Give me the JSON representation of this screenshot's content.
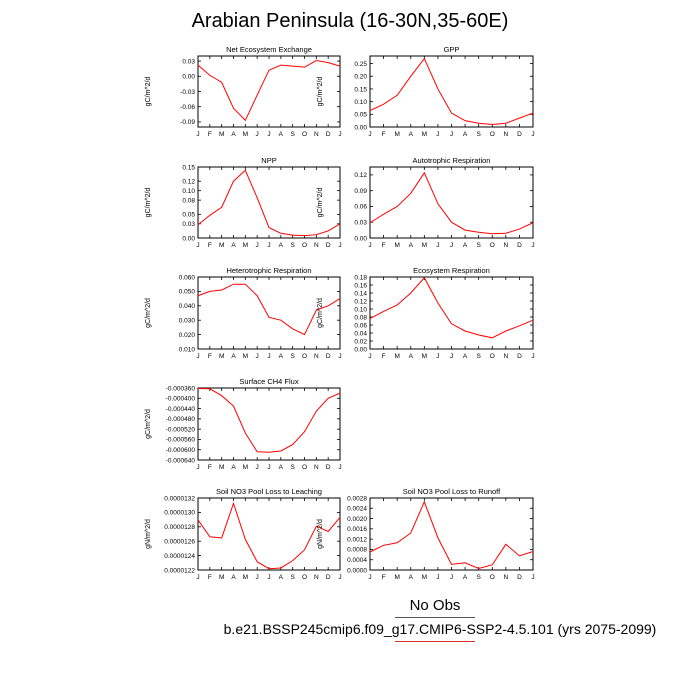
{
  "page": {
    "title": "Arabian Peninsula (16-30N,35-60E)",
    "legend_label": "No Obs",
    "case_name": "b.e21.BSSP245cmip6.f09_g17.CMIP6-SSP2-4.5.101 (yrs 2075-2099)",
    "line_color": "#ff0000"
  },
  "chart_data": [
    {
      "type": "line",
      "title": "Net Ecosystem Exchange",
      "ylabel": "gC/m^2/d",
      "x": [
        "J",
        "F",
        "M",
        "A",
        "M",
        "J",
        "J",
        "A",
        "S",
        "O",
        "N",
        "D",
        "J"
      ],
      "y_ticks": [
        "0.03",
        "0.00",
        "-0.03",
        "-0.06",
        "-0.09"
      ],
      "ylim": [
        -0.1,
        0.04
      ],
      "series": [
        {
          "values": [
            0.022,
            0.002,
            -0.012,
            -0.063,
            -0.087,
            -0.037,
            0.012,
            0.022,
            0.02,
            0.018,
            0.031,
            0.027,
            0.02
          ]
        }
      ]
    },
    {
      "type": "line",
      "title": "GPP",
      "ylabel": "gC/m^2/d",
      "x": [
        "J",
        "F",
        "M",
        "A",
        "M",
        "J",
        "J",
        "A",
        "S",
        "O",
        "N",
        "D",
        "J"
      ],
      "y_ticks": [
        "0.25",
        "0.20",
        "0.15",
        "0.10",
        "0.05",
        "0.00"
      ],
      "ylim": [
        0,
        0.28
      ],
      "series": [
        {
          "values": [
            0.065,
            0.09,
            0.125,
            0.2,
            0.27,
            0.15,
            0.055,
            0.025,
            0.015,
            0.01,
            0.015,
            0.035,
            0.055
          ]
        }
      ]
    },
    {
      "type": "line",
      "title": "NPP",
      "ylabel": "gC/m^2/d",
      "x": [
        "J",
        "F",
        "M",
        "A",
        "M",
        "J",
        "J",
        "A",
        "S",
        "O",
        "N",
        "D",
        "J"
      ],
      "y_ticks": [
        "0.15",
        "0.12",
        "0.10",
        "0.08",
        "0.05",
        "0.03",
        "0.00"
      ],
      "ylim": [
        0,
        0.15
      ],
      "series": [
        {
          "values": [
            0.028,
            0.048,
            0.065,
            0.12,
            0.143,
            0.085,
            0.022,
            0.01,
            0.006,
            0.005,
            0.007,
            0.015,
            0.03
          ]
        }
      ]
    },
    {
      "type": "line",
      "title": "Autotrophic Respiration",
      "ylabel": "gC/m^2/d",
      "x": [
        "J",
        "F",
        "M",
        "A",
        "M",
        "J",
        "J",
        "A",
        "S",
        "O",
        "N",
        "D",
        "J"
      ],
      "y_ticks": [
        "0.12",
        "0.09",
        "0.06",
        "0.03",
        "0.00"
      ],
      "ylim": [
        0,
        0.135
      ],
      "series": [
        {
          "values": [
            0.029,
            0.045,
            0.06,
            0.085,
            0.124,
            0.065,
            0.03,
            0.015,
            0.011,
            0.008,
            0.009,
            0.017,
            0.029
          ]
        }
      ]
    },
    {
      "type": "line",
      "title": "Heterotrophic Respiration",
      "ylabel": "gC/m^2/d",
      "x": [
        "J",
        "F",
        "M",
        "A",
        "M",
        "J",
        "J",
        "A",
        "S",
        "O",
        "N",
        "D",
        "J"
      ],
      "y_ticks": [
        "0.060",
        "0.050",
        "0.040",
        "0.030",
        "0.020",
        "0.010"
      ],
      "ylim": [
        0.01,
        0.06
      ],
      "series": [
        {
          "values": [
            0.047,
            0.05,
            0.051,
            0.055,
            0.055,
            0.047,
            0.032,
            0.03,
            0.024,
            0.02,
            0.037,
            0.04,
            0.045
          ]
        }
      ]
    },
    {
      "type": "line",
      "title": "Ecosystem Respiration",
      "ylabel": "gC/m^2/d",
      "x": [
        "J",
        "F",
        "M",
        "A",
        "M",
        "J",
        "J",
        "A",
        "S",
        "O",
        "N",
        "D",
        "J"
      ],
      "y_ticks": [
        "0.18",
        "0.16",
        "0.14",
        "0.12",
        "0.10",
        "0.08",
        "0.06",
        "0.04",
        "0.02",
        "0.00"
      ],
      "ylim": [
        0,
        0.18
      ],
      "series": [
        {
          "values": [
            0.076,
            0.094,
            0.11,
            0.14,
            0.178,
            0.115,
            0.063,
            0.045,
            0.035,
            0.028,
            0.045,
            0.058,
            0.072
          ]
        }
      ]
    },
    {
      "type": "line",
      "title": "Surface CH4 Flux",
      "ylabel": "gC/m^2/d",
      "x": [
        "J",
        "F",
        "M",
        "A",
        "M",
        "J",
        "J",
        "A",
        "S",
        "O",
        "N",
        "D",
        "J"
      ],
      "y_ticks": [
        "-0.000360",
        "-0.000400",
        "-0.000440",
        "-0.000480",
        "-0.000520",
        "-0.000560",
        "-0.000600",
        "-0.000640"
      ],
      "ylim": [
        -0.00064,
        -0.00036
      ],
      "series": [
        {
          "values": [
            -0.000362,
            -0.000363,
            -0.00039,
            -0.00043,
            -0.000535,
            -0.000608,
            -0.00061,
            -0.000605,
            -0.00058,
            -0.00053,
            -0.00045,
            -0.0004,
            -0.00038
          ]
        }
      ]
    },
    {
      "type": "line",
      "title": "Soil NO3 Pool Loss to Leaching",
      "ylabel": "gN/m^2/d",
      "x": [
        "J",
        "F",
        "M",
        "A",
        "M",
        "J",
        "J",
        "A",
        "S",
        "O",
        "N",
        "D",
        "J"
      ],
      "y_ticks": [
        "0.0000132",
        "0.0000130",
        "0.0000128",
        "0.0000126",
        "0.0000124",
        "0.0000122"
      ],
      "ylim": [
        1.22e-05,
        1.32e-05
      ],
      "series": [
        {
          "values": [
            1.2895e-05,
            1.2662e-05,
            1.2645e-05,
            1.3125e-05,
            1.2625e-05,
            1.2315e-05,
            1.2218e-05,
            1.2228e-05,
            1.233e-05,
            1.248e-05,
            1.2808e-05,
            1.2735e-05,
            1.293e-05
          ]
        }
      ]
    },
    {
      "type": "line",
      "title": "Soil NO3 Pool Loss to Runoff",
      "ylabel": "gN/m^2/d",
      "x": [
        "J",
        "F",
        "M",
        "A",
        "M",
        "J",
        "J",
        "A",
        "S",
        "O",
        "N",
        "D",
        "J"
      ],
      "y_ticks": [
        "0.0028",
        "0.0024",
        "0.0020",
        "0.0016",
        "0.0012",
        "0.0008",
        "0.0004",
        "0.0000"
      ],
      "ylim": [
        0,
        0.0028
      ],
      "series": [
        {
          "values": [
            0.0007,
            0.00096,
            0.00106,
            0.00144,
            0.00265,
            0.00125,
            0.00022,
            0.00028,
            6e-05,
            0.0002,
            0.001,
            0.00055,
            0.00072
          ]
        }
      ]
    }
  ]
}
